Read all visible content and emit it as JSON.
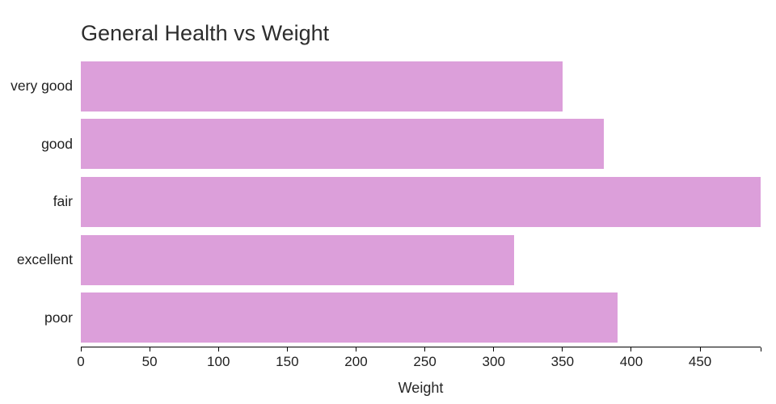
{
  "chart_data": {
    "type": "bar",
    "orientation": "horizontal",
    "title": "General Health vs Weight",
    "xlabel": "Weight",
    "ylabel": "",
    "categories": [
      "very good",
      "good",
      "fair",
      "excellent",
      "poor"
    ],
    "values": [
      350,
      380,
      494,
      315,
      390
    ],
    "xlim": [
      0,
      494
    ],
    "x_ticks": [
      0,
      50,
      100,
      150,
      200,
      250,
      300,
      350,
      400,
      450
    ],
    "edge_tick_at_domain_end": true,
    "grid": false,
    "legend": "none",
    "colors": {
      "bar_fill": "#dc9fda",
      "axis_line": "#000000",
      "text": "#1f1f1f",
      "background": "#ffffff"
    }
  }
}
